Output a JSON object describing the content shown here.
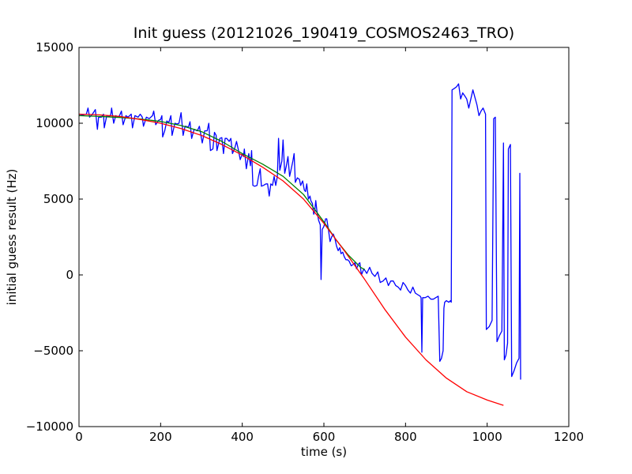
{
  "chart_data": {
    "type": "line",
    "title": "Init guess (20121026_190419_COSMOS2463_TRO)",
    "xlabel": "time (s)",
    "ylabel": "initial guess result (Hz)",
    "xlim": [
      0,
      1200
    ],
    "ylim": [
      -10000,
      15000
    ],
    "x_ticks": [
      0,
      200,
      400,
      600,
      800,
      1000,
      1200
    ],
    "y_ticks": [
      -10000,
      -5000,
      0,
      5000,
      10000,
      15000
    ],
    "grid": false,
    "legend": "none",
    "series": [
      {
        "color": "#0000ff",
        "points": [
          [
            0,
            10500
          ],
          [
            10,
            10550
          ],
          [
            18,
            10600
          ],
          [
            22,
            11000
          ],
          [
            26,
            10400
          ],
          [
            33,
            10600
          ],
          [
            40,
            10900
          ],
          [
            45,
            9600
          ],
          [
            48,
            10400
          ],
          [
            55,
            10400
          ],
          [
            60,
            10600
          ],
          [
            62,
            9700
          ],
          [
            68,
            10500
          ],
          [
            75,
            10450
          ],
          [
            78,
            10600
          ],
          [
            80,
            11000
          ],
          [
            85,
            10000
          ],
          [
            90,
            10500
          ],
          [
            97,
            10400
          ],
          [
            100,
            10550
          ],
          [
            104,
            10800
          ],
          [
            108,
            9900
          ],
          [
            115,
            10500
          ],
          [
            120,
            10400
          ],
          [
            128,
            10600
          ],
          [
            131,
            9700
          ],
          [
            137,
            10500
          ],
          [
            145,
            10400
          ],
          [
            150,
            10600
          ],
          [
            155,
            10400
          ],
          [
            158,
            9800
          ],
          [
            165,
            10400
          ],
          [
            172,
            10300
          ],
          [
            180,
            10500
          ],
          [
            183,
            10800
          ],
          [
            188,
            9900
          ],
          [
            195,
            10200
          ],
          [
            200,
            10250
          ],
          [
            203,
            10500
          ],
          [
            205,
            9100
          ],
          [
            210,
            9500
          ],
          [
            215,
            10150
          ],
          [
            220,
            10050
          ],
          [
            225,
            10500
          ],
          [
            228,
            9200
          ],
          [
            235,
            10000
          ],
          [
            240,
            9950
          ],
          [
            245,
            10000
          ],
          [
            250,
            10700
          ],
          [
            255,
            9200
          ],
          [
            260,
            9800
          ],
          [
            268,
            9750
          ],
          [
            272,
            10100
          ],
          [
            276,
            9000
          ],
          [
            282,
            9600
          ],
          [
            290,
            9500
          ],
          [
            295,
            9800
          ],
          [
            302,
            8700
          ],
          [
            308,
            9500
          ],
          [
            314,
            9500
          ],
          [
            318,
            10000
          ],
          [
            322,
            8200
          ],
          [
            328,
            8300
          ],
          [
            332,
            9400
          ],
          [
            336,
            9200
          ],
          [
            338,
            8200
          ],
          [
            345,
            9000
          ],
          [
            350,
            9050
          ],
          [
            354,
            8000
          ],
          [
            358,
            9000
          ],
          [
            362,
            9000
          ],
          [
            368,
            8800
          ],
          [
            372,
            9000
          ],
          [
            376,
            8000
          ],
          [
            382,
            8400
          ],
          [
            386,
            8800
          ],
          [
            390,
            8300
          ],
          [
            395,
            7600
          ],
          [
            400,
            8000
          ],
          [
            403,
            7800
          ],
          [
            405,
            8300
          ],
          [
            410,
            7000
          ],
          [
            416,
            8000
          ],
          [
            420,
            7200
          ],
          [
            423,
            8200
          ],
          [
            426,
            5900
          ],
          [
            430,
            5850
          ],
          [
            436,
            5900
          ],
          [
            440,
            6500
          ],
          [
            444,
            7000
          ],
          [
            447,
            5850
          ],
          [
            452,
            5900
          ],
          [
            458,
            6000
          ],
          [
            462,
            6000
          ],
          [
            466,
            5200
          ],
          [
            470,
            6000
          ],
          [
            474,
            5900
          ],
          [
            478,
            6500
          ],
          [
            482,
            5900
          ],
          [
            486,
            6500
          ],
          [
            489,
            9000
          ],
          [
            492,
            6900
          ],
          [
            497,
            7500
          ],
          [
            500,
            8900
          ],
          [
            504,
            6700
          ],
          [
            508,
            7200
          ],
          [
            512,
            7800
          ],
          [
            516,
            6500
          ],
          [
            520,
            7000
          ],
          [
            524,
            7500
          ],
          [
            527,
            8000
          ],
          [
            530,
            6100
          ],
          [
            535,
            6400
          ],
          [
            540,
            6300
          ],
          [
            543,
            5900
          ],
          [
            548,
            6200
          ],
          [
            552,
            5600
          ],
          [
            555,
            5500
          ],
          [
            558,
            6000
          ],
          [
            562,
            5000
          ],
          [
            566,
            5200
          ],
          [
            568,
            4900
          ],
          [
            572,
            4700
          ],
          [
            575,
            4000
          ],
          [
            578,
            4300
          ],
          [
            580,
            4900
          ],
          [
            583,
            4200
          ],
          [
            587,
            3600
          ],
          [
            591,
            3300
          ],
          [
            593,
            -300
          ],
          [
            596,
            3000
          ],
          [
            600,
            3200
          ],
          [
            604,
            3700
          ],
          [
            607,
            3700
          ],
          [
            611,
            3000
          ],
          [
            615,
            2200
          ],
          [
            619,
            2500
          ],
          [
            623,
            2700
          ],
          [
            627,
            2400
          ],
          [
            631,
            1900
          ],
          [
            635,
            1600
          ],
          [
            639,
            1800
          ],
          [
            642,
            1400
          ],
          [
            646,
            1500
          ],
          [
            650,
            1200
          ],
          [
            654,
            1000
          ],
          [
            658,
            1000
          ],
          [
            662,
            900
          ],
          [
            667,
            600
          ],
          [
            672,
            700
          ],
          [
            676,
            800
          ],
          [
            680,
            400
          ],
          [
            684,
            700
          ],
          [
            688,
            800
          ],
          [
            692,
            0
          ],
          [
            698,
            400
          ],
          [
            705,
            100
          ],
          [
            712,
            500
          ],
          [
            718,
            100
          ],
          [
            725,
            -100
          ],
          [
            732,
            200
          ],
          [
            738,
            -500
          ],
          [
            745,
            -400
          ],
          [
            752,
            -200
          ],
          [
            758,
            -700
          ],
          [
            764,
            -400
          ],
          [
            770,
            -400
          ],
          [
            776,
            -700
          ],
          [
            782,
            -800
          ],
          [
            788,
            -1000
          ],
          [
            794,
            -500
          ],
          [
            800,
            -700
          ],
          [
            806,
            -1000
          ],
          [
            812,
            -1200
          ],
          [
            818,
            -800
          ],
          [
            824,
            -1200
          ],
          [
            830,
            -1300
          ],
          [
            836,
            -1400
          ],
          [
            838,
            -1500
          ],
          [
            840,
            -5100
          ],
          [
            842,
            -1500
          ],
          [
            848,
            -1500
          ],
          [
            855,
            -1400
          ],
          [
            862,
            -1600
          ],
          [
            868,
            -1600
          ],
          [
            874,
            -1500
          ],
          [
            880,
            -1400
          ],
          [
            884,
            -5700
          ],
          [
            888,
            -5500
          ],
          [
            892,
            -5000
          ],
          [
            894,
            -2200
          ],
          [
            896,
            -1800
          ],
          [
            900,
            -1700
          ],
          [
            906,
            -1800
          ],
          [
            910,
            -1700
          ],
          [
            912,
            -1800
          ],
          [
            914,
            12200
          ],
          [
            920,
            12300
          ],
          [
            925,
            12400
          ],
          [
            930,
            12600
          ],
          [
            935,
            11600
          ],
          [
            940,
            12000
          ],
          [
            945,
            11800
          ],
          [
            950,
            11600
          ],
          [
            955,
            11000
          ],
          [
            960,
            11600
          ],
          [
            965,
            12200
          ],
          [
            970,
            11700
          ],
          [
            975,
            11200
          ],
          [
            980,
            10500
          ],
          [
            985,
            10800
          ],
          [
            990,
            11000
          ],
          [
            996,
            10600
          ],
          [
            998,
            -3600
          ],
          [
            1005,
            -3400
          ],
          [
            1012,
            -3000
          ],
          [
            1016,
            10300
          ],
          [
            1020,
            10400
          ],
          [
            1024,
            -4400
          ],
          [
            1030,
            -4000
          ],
          [
            1036,
            -3700
          ],
          [
            1040,
            8700
          ],
          [
            1042,
            -5600
          ],
          [
            1046,
            -5300
          ],
          [
            1050,
            -4500
          ],
          [
            1052,
            8300
          ],
          [
            1057,
            8600
          ],
          [
            1060,
            -6700
          ],
          [
            1066,
            -6300
          ],
          [
            1072,
            -5800
          ],
          [
            1078,
            -5500
          ],
          [
            1080,
            6700
          ],
          [
            1082,
            -6900
          ]
        ]
      },
      {
        "color": "#008000",
        "points": [
          [
            0,
            10500
          ],
          [
            50,
            10450
          ],
          [
            100,
            10380
          ],
          [
            150,
            10280
          ],
          [
            200,
            10120
          ],
          [
            250,
            9850
          ],
          [
            300,
            9450
          ],
          [
            350,
            8800
          ],
          [
            400,
            8000
          ],
          [
            450,
            7300
          ],
          [
            500,
            6500
          ],
          [
            550,
            5300
          ],
          [
            600,
            3500
          ],
          [
            630,
            2300
          ],
          [
            660,
            1300
          ],
          [
            690,
            500
          ],
          [
            700,
            350
          ]
        ]
      },
      {
        "color": "#ff0000",
        "points": [
          [
            0,
            10600
          ],
          [
            50,
            10550
          ],
          [
            100,
            10450
          ],
          [
            150,
            10250
          ],
          [
            200,
            10000
          ],
          [
            250,
            9650
          ],
          [
            300,
            9200
          ],
          [
            350,
            8600
          ],
          [
            400,
            7900
          ],
          [
            450,
            7100
          ],
          [
            500,
            6200
          ],
          [
            550,
            5000
          ],
          [
            600,
            3400
          ],
          [
            650,
            1600
          ],
          [
            700,
            -300
          ],
          [
            750,
            -2300
          ],
          [
            800,
            -4100
          ],
          [
            850,
            -5600
          ],
          [
            900,
            -6800
          ],
          [
            950,
            -7700
          ],
          [
            1000,
            -8250
          ],
          [
            1040,
            -8600
          ]
        ]
      }
    ]
  }
}
